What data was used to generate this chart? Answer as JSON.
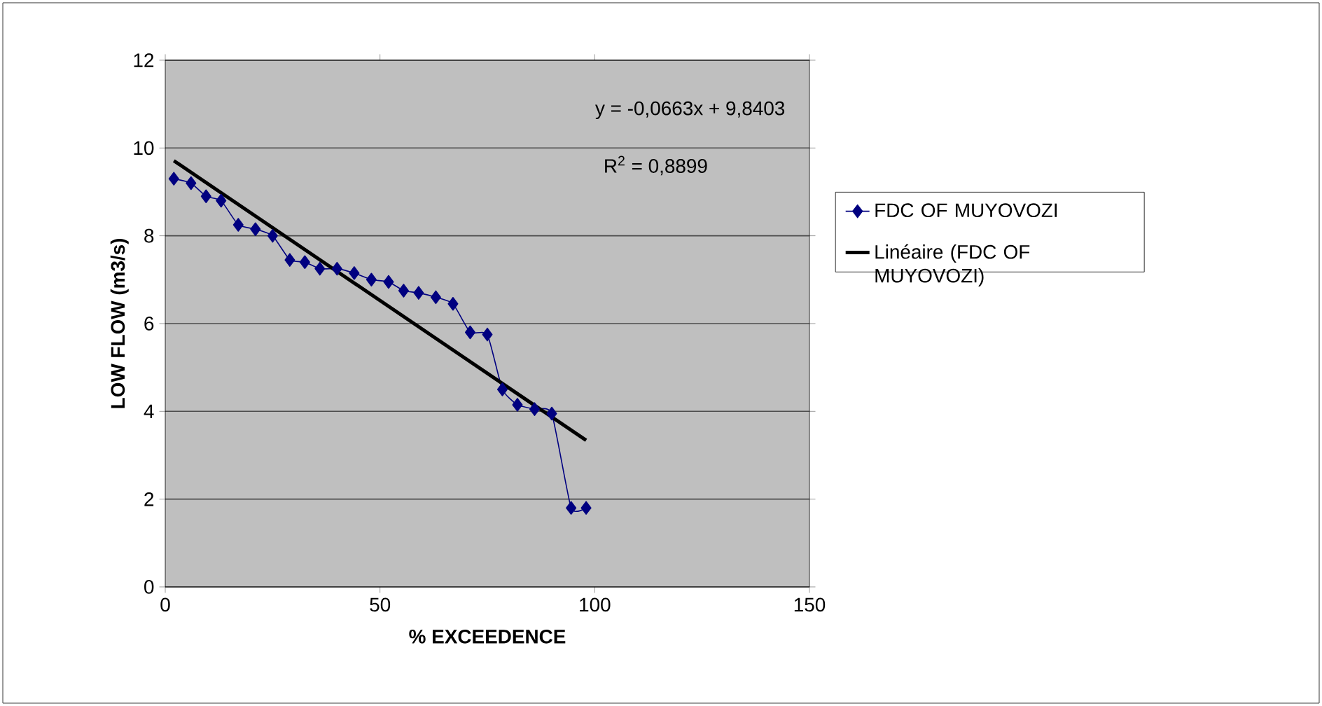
{
  "chart_data": {
    "type": "line",
    "xlabel": "% EXCEEDENCE",
    "ylabel": "LOW FLOW (m3/s)",
    "annotations": [
      "y = -0,0663x + 9,8403",
      "R$^{2}$ = 0,8899"
    ],
    "xlim": [
      0,
      150
    ],
    "ylim": [
      0,
      12
    ],
    "xticks": [
      0,
      50,
      100,
      150
    ],
    "yticks": [
      0,
      2,
      4,
      6,
      8,
      10,
      12
    ],
    "grid": "y",
    "legend": "right",
    "series": [
      {
        "name": "FDC  OF MUYOVOZI",
        "color": "#000080",
        "marker": "diamond",
        "x": [
          2,
          6,
          9.5,
          13,
          17,
          21,
          25,
          29,
          32.5,
          36,
          40,
          44,
          48,
          52,
          55.5,
          59,
          63,
          67,
          71,
          75,
          78.5,
          82,
          86,
          90,
          94.5,
          98
        ],
        "values": [
          9.3,
          9.2,
          8.9,
          8.8,
          8.25,
          8.15,
          8.0,
          7.45,
          7.4,
          7.25,
          7.25,
          7.15,
          7.0,
          6.95,
          6.75,
          6.7,
          6.6,
          6.45,
          5.8,
          5.75,
          4.5,
          4.15,
          4.05,
          3.95,
          1.8,
          1.8
        ]
      },
      {
        "name": "Linéaire (FDC  OF MUYOVOZI)",
        "color": "#000000",
        "marker": "none",
        "line_style": "solid",
        "x": [
          2,
          98
        ],
        "values": [
          9.71,
          3.34
        ]
      }
    ]
  }
}
